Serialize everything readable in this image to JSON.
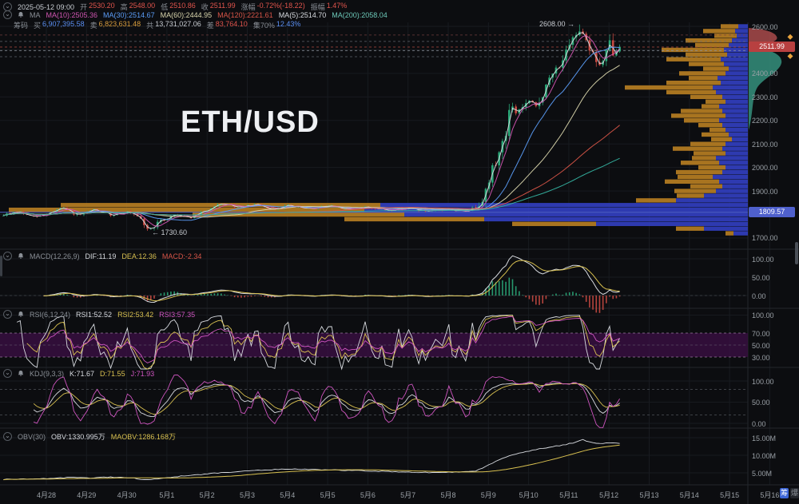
{
  "watermark": "ETH/USD",
  "header": {
    "row1": {
      "time": "2025-05-12 09:00",
      "items": [
        {
          "label": "开",
          "value": "2530.20"
        },
        {
          "label": "高",
          "value": "2548.00"
        },
        {
          "label": "低",
          "value": "2510.86"
        },
        {
          "label": "收",
          "value": "2511.99"
        },
        {
          "label": "涨幅",
          "value": "-0.72%(-18.22)"
        },
        {
          "label": "振幅",
          "value": "1.47%"
        }
      ]
    },
    "row2": {
      "label": "MA",
      "items": [
        {
          "text": "MA(10):2505.36",
          "color": "#cf55b0"
        },
        {
          "text": "MA(30):2514.67",
          "color": "#5b9cf6"
        },
        {
          "text": "MA(60):2444.95",
          "color": "#d9d5ac"
        },
        {
          "text": "MA(120):2221.61",
          "color": "#d85548"
        },
        {
          "text": "MA(5):2514.70",
          "color": "#d8dbe0"
        },
        {
          "text": "MA(200):2058.04",
          "color": "#6cc8b8"
        }
      ]
    },
    "row3": {
      "label": "筹码",
      "items": [
        {
          "label": "买",
          "value": "6,907,395.58",
          "color": "#5b8ff2"
        },
        {
          "label": "卖",
          "value": "6,823,631.48",
          "color": "#d89c3c"
        },
        {
          "label": "共",
          "value": "13,731,027.06",
          "color": "#c8ccd2"
        },
        {
          "label": "差",
          "value": "83,764.10",
          "color": "#e0544c"
        },
        {
          "label": "集70%",
          "value": "12.43%",
          "color": "#5b8ff2"
        }
      ]
    }
  },
  "annotations": {
    "high": "2608.00 →",
    "low": "← 1730.60"
  },
  "price_axis": {
    "main_labels": [
      "2600.00",
      "2400.00",
      "2300.00",
      "2200.00",
      "2100.00",
      "2000.00",
      "1900.00",
      "1700.00"
    ],
    "current": "2511.99",
    "anchor": "1809.57"
  },
  "panels": {
    "macd": {
      "title": "MACD(12,26,9)",
      "items": [
        {
          "text": "DIF:11.19",
          "color": "#d8dbe0"
        },
        {
          "text": "DEA:12.36",
          "color": "#d8c050"
        },
        {
          "text": "MACD:-2.34",
          "color": "#d85548"
        }
      ],
      "axis": [
        "100.00",
        "50.00",
        "0.00"
      ]
    },
    "rsi": {
      "title": "RSI(6,12,24)",
      "items": [
        {
          "text": "RSI1:52.52",
          "color": "#d8dbe0"
        },
        {
          "text": "RSI2:53.42",
          "color": "#d8c050"
        },
        {
          "text": "RSI3:57.35",
          "color": "#cf55c0"
        }
      ],
      "axis": [
        "100.00",
        "70.00",
        "50.00",
        "30.00"
      ]
    },
    "kdj": {
      "title": "KDJ(9,3,3)",
      "items": [
        {
          "text": "K:71.67",
          "color": "#d8dbe0"
        },
        {
          "text": "D:71.55",
          "color": "#d8c050"
        },
        {
          "text": "J:71.93",
          "color": "#cf55c0"
        }
      ],
      "axis": [
        "100.00",
        "50.00",
        "0.00"
      ]
    },
    "obv": {
      "title": "OBV(30)",
      "items": [
        {
          "text": "OBV:1330.995万",
          "color": "#d8dbe0"
        },
        {
          "text": "MAOBV:1286.168万",
          "color": "#d8c050"
        }
      ],
      "axis": [
        "15.00M",
        "10.00M",
        "5.00M"
      ]
    }
  },
  "x_axis": {
    "dates": [
      "4月28",
      "4月29",
      "4月30",
      "5月1",
      "5月2",
      "5月3",
      "5月4",
      "5月5",
      "5月6",
      "5月7",
      "5月8",
      "5月9",
      "5月10",
      "5月11",
      "5月12",
      "5月13",
      "5月14",
      "5月15",
      "5月16"
    ],
    "buttons": [
      "筹",
      "爆"
    ]
  },
  "chart_data": {
    "type": "candlestick",
    "symbol": "ETH/USD",
    "ylim": [
      1700,
      2600
    ],
    "current_price": 2511.99,
    "anchor_price": 1809.57,
    "high_annotation": 2608.0,
    "low_annotation": 1730.6,
    "ohlc_latest": {
      "open": 2530.2,
      "high": 2548.0,
      "low": 2510.86,
      "close": 2511.99,
      "change_pct": -0.72,
      "change": -18.22,
      "amplitude_pct": 1.47
    },
    "price_path": [
      [
        -1.15,
        1795
      ],
      [
        -0.7,
        1812
      ],
      [
        -0.3,
        1788
      ],
      [
        0,
        1802
      ],
      [
        0.4,
        1828
      ],
      [
        0.8,
        1795
      ],
      [
        1.2,
        1820
      ],
      [
        1.6,
        1798
      ],
      [
        2.0,
        1812
      ],
      [
        2.3,
        1786
      ],
      [
        2.55,
        1733
      ],
      [
        2.8,
        1768
      ],
      [
        3.2,
        1800
      ],
      [
        3.6,
        1788
      ],
      [
        4.0,
        1818
      ],
      [
        4.4,
        1846
      ],
      [
        4.8,
        1828
      ],
      [
        5.2,
        1842
      ],
      [
        5.6,
        1822
      ],
      [
        6.0,
        1838
      ],
      [
        6.5,
        1824
      ],
      [
        7.0,
        1836
      ],
      [
        7.5,
        1822
      ],
      [
        8.0,
        1832
      ],
      [
        8.5,
        1818
      ],
      [
        9.0,
        1828
      ],
      [
        9.5,
        1812
      ],
      [
        10.0,
        1822
      ],
      [
        10.4,
        1812
      ],
      [
        10.7,
        1832
      ],
      [
        10.9,
        1880
      ],
      [
        11.1,
        1990
      ],
      [
        11.3,
        2080
      ],
      [
        11.45,
        2160
      ],
      [
        11.55,
        2270
      ],
      [
        11.65,
        2230
      ],
      [
        11.8,
        2250
      ],
      [
        12.0,
        2280
      ],
      [
        12.2,
        2255
      ],
      [
        12.4,
        2330
      ],
      [
        12.6,
        2400
      ],
      [
        12.8,
        2445
      ],
      [
        13.0,
        2505
      ],
      [
        13.2,
        2575
      ],
      [
        13.3,
        2595
      ],
      [
        13.4,
        2560
      ],
      [
        13.55,
        2495
      ],
      [
        13.7,
        2450
      ],
      [
        13.8,
        2428
      ],
      [
        13.95,
        2492
      ],
      [
        14.05,
        2540
      ],
      [
        14.12,
        2465
      ],
      [
        14.2,
        2495
      ],
      [
        14.25,
        2512
      ]
    ],
    "obv_path": [
      [
        -1.15,
        3.1
      ],
      [
        0,
        3.4
      ],
      [
        0.6,
        3.7
      ],
      [
        1.1,
        3.5
      ],
      [
        1.6,
        3.8
      ],
      [
        2.1,
        3.6
      ],
      [
        2.55,
        2.9
      ],
      [
        3.0,
        3.7
      ],
      [
        3.6,
        4.3
      ],
      [
        4.2,
        4.9
      ],
      [
        4.8,
        5.4
      ],
      [
        5.4,
        5.8
      ],
      [
        6.0,
        6.1
      ],
      [
        6.6,
        6.0
      ],
      [
        7.2,
        5.8
      ],
      [
        7.8,
        5.6
      ],
      [
        8.4,
        5.4
      ],
      [
        9.0,
        5.2
      ],
      [
        9.6,
        5.1
      ],
      [
        10.2,
        5.2
      ],
      [
        10.7,
        5.6
      ],
      [
        11.0,
        7.2
      ],
      [
        11.3,
        9.0
      ],
      [
        11.6,
        10.2
      ],
      [
        12.0,
        11.2
      ],
      [
        12.4,
        12.1
      ],
      [
        12.8,
        12.8
      ],
      [
        13.1,
        13.5
      ],
      [
        13.35,
        14.4
      ],
      [
        13.6,
        13.5
      ],
      [
        13.9,
        13.4
      ],
      [
        14.1,
        13.6
      ],
      [
        14.25,
        13.31
      ]
    ],
    "volume_profile": [
      [
        2600,
        12,
        22
      ],
      [
        2580,
        16,
        40
      ],
      [
        2560,
        14,
        28
      ],
      [
        2540,
        20,
        58
      ],
      [
        2520,
        24,
        42
      ],
      [
        2500,
        30,
        78
      ],
      [
        2480,
        26,
        52
      ],
      [
        2460,
        34,
        68
      ],
      [
        2440,
        30,
        44
      ],
      [
        2420,
        24,
        32
      ],
      [
        2400,
        28,
        58
      ],
      [
        2380,
        38,
        36
      ],
      [
        2360,
        34,
        68
      ],
      [
        2340,
        44,
        110
      ],
      [
        2320,
        40,
        62
      ],
      [
        2300,
        32,
        40
      ],
      [
        2280,
        28,
        25
      ],
      [
        2260,
        36,
        22
      ],
      [
        2240,
        32,
        52
      ],
      [
        2220,
        28,
        68
      ],
      [
        2200,
        36,
        44
      ],
      [
        2180,
        32,
        30
      ],
      [
        2160,
        28,
        20
      ],
      [
        2140,
        24,
        34
      ],
      [
        2120,
        20,
        26
      ],
      [
        2100,
        28,
        44
      ],
      [
        2080,
        32,
        62
      ],
      [
        2060,
        28,
        40
      ],
      [
        2040,
        40,
        30
      ],
      [
        2020,
        36,
        48
      ],
      [
        2000,
        28,
        34
      ],
      [
        1980,
        32,
        58
      ],
      [
        1960,
        44,
        44
      ],
      [
        1940,
        36,
        68
      ],
      [
        1920,
        32,
        40
      ],
      [
        1900,
        40,
        52
      ],
      [
        1880,
        55,
        34
      ],
      [
        1860,
        90,
        50
      ],
      [
        1840,
        460,
        400
      ],
      [
        1820,
        480,
        445
      ],
      [
        1800,
        430,
        265
      ],
      [
        1780,
        330,
        175
      ],
      [
        1760,
        190,
        105
      ],
      [
        1740,
        55,
        35
      ],
      [
        1720,
        18,
        10
      ]
    ],
    "dashed_levels": [
      {
        "p": 2563,
        "color": "#7a4040"
      },
      {
        "p": 2536,
        "color": "#666c74"
      },
      {
        "p": 2511.99,
        "color": "#a84a42"
      },
      {
        "p": 2497,
        "color": "#8d939b"
      },
      {
        "p": 2471,
        "color": "#666c74"
      }
    ],
    "kdj_dashed": [
      80,
      20
    ],
    "rsi_band": [
      30,
      70
    ],
    "main_grid": [
      2600,
      2500,
      2400,
      2300,
      2200,
      2100,
      2000,
      1900,
      1800,
      1700
    ],
    "ma_lines": [
      {
        "window": 2,
        "color": "#d8dbe0"
      },
      {
        "window": 5,
        "color": "#cf55b0"
      },
      {
        "window": 15,
        "color": "#5b9cf6"
      },
      {
        "window": 30,
        "color": "#d9d5ac"
      },
      {
        "window": 60,
        "color": "#d85548"
      },
      {
        "window": 100,
        "color": "#35b2a0"
      }
    ],
    "candle_colors": {
      "up": "#2aa878",
      "down": "#c84a42"
    },
    "profile_colors": {
      "buy": "#323fc2",
      "sell": "#b97f22"
    },
    "bell_colors": {
      "above": "#a94b4b",
      "below": "#35917c"
    },
    "diamond_color": "#e8a33d",
    "diamond_prices": [
      2555,
      2473
    ],
    "macd_scale_target": 108
  }
}
